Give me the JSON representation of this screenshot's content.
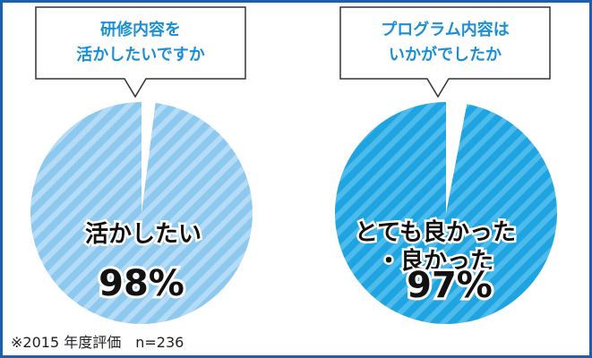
{
  "chart_data": [
    {
      "type": "pie",
      "question": "研修内容を 活かしたいですか",
      "question_lines": [
        "研修内容を",
        "活かしたいですか"
      ],
      "label": "活かしたい",
      "label_lines": [
        "活かしたい"
      ],
      "value_text": "98%",
      "slices": [
        {
          "name": "活かしたい",
          "value": 98,
          "color": "#8dc8ef"
        },
        {
          "name": "",
          "value": 2,
          "color": "#ffffff"
        }
      ]
    },
    {
      "type": "pie",
      "question": "プログラム内容は いかがでしたか",
      "question_lines": [
        "プログラム内容は",
        "いかがでしたか"
      ],
      "label": "とても良かった ・良かった",
      "label_lines": [
        "とても良かった",
        "・良かった"
      ],
      "value_text": "97%",
      "slices": [
        {
          "name": "とても良かった・良かった",
          "value": 97,
          "color": "#1ea4e0"
        },
        {
          "name": "",
          "value": 3,
          "color": "#ffffff"
        }
      ]
    }
  ],
  "frame_color": "#1a5fb0",
  "question_color": "#1a8fd6",
  "footnote": "※2015 年度評価　n=236"
}
